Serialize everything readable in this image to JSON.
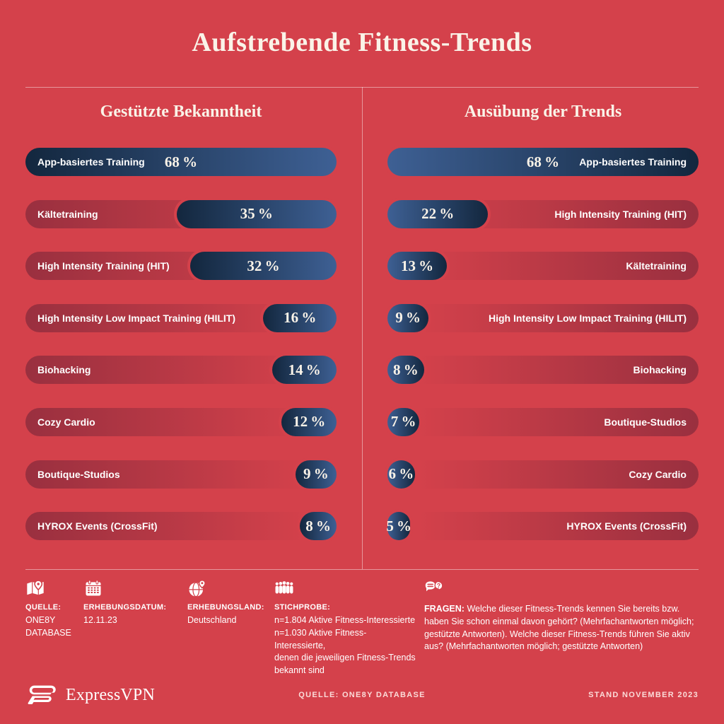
{
  "title": "Aufstrebende Fitness-Trends",
  "chart_data": [
    {
      "type": "bar",
      "title": "Gestützte Bekanntheit",
      "orientation": "horizontal, fills anchored right, labels left",
      "unit": "%",
      "max": 68,
      "categories": [
        "App-basiertes Training",
        "Kältetraining",
        "High Intensity Training (HIT)",
        "High Intensity Low Impact Training (HILIT)",
        "Biohacking",
        "Cozy Cardio",
        "Boutique-Studios",
        "HYROX Events (CrossFit)"
      ],
      "values": [
        68,
        35,
        32,
        16,
        14,
        12,
        9,
        8
      ],
      "labels": [
        "68 %",
        "35 %",
        "32 %",
        "16 %",
        "14 %",
        "12 %",
        "9 %",
        "8 %"
      ]
    },
    {
      "type": "bar",
      "title": "Ausübung der Trends",
      "orientation": "horizontal, fills anchored left, labels right",
      "unit": "%",
      "max": 68,
      "categories": [
        "App-basiertes Training",
        "High Intensity Training (HIT)",
        "Kältetraining",
        "High Intensity Low Impact Training (HILIT)",
        "Biohacking",
        "Boutique-Studios",
        "Cozy Cardio",
        "HYROX Events (CrossFit)"
      ],
      "values": [
        68,
        22,
        13,
        9,
        8,
        7,
        6,
        5
      ],
      "labels": [
        "68 %",
        "22 %",
        "13 %",
        "9 %",
        "8 %",
        "7 %",
        "6 %",
        "5 %"
      ]
    }
  ],
  "footer": {
    "items": [
      {
        "icon": "map-pin-icon",
        "label": "QUELLE:",
        "inline": false,
        "lines": [
          "ONE8Y",
          "DATABASE"
        ]
      },
      {
        "icon": "calendar-icon",
        "label": "ERHEBUNGSDATUM:",
        "inline": false,
        "lines": [
          "12.11.23"
        ]
      },
      {
        "icon": "globe-pin-icon",
        "label": "ERHEBUNGSLAND:",
        "inline": false,
        "lines": [
          "Deutschland"
        ]
      },
      {
        "icon": "people-icon",
        "label": "STICHPROBE:",
        "inline": false,
        "lines": [
          "n=1.804 Aktive Fitness-Interessierte",
          "n=1.030 Aktive Fitness-Interessierte,",
          "denen die jeweiligen Fitness-Trends",
          "bekannt sind"
        ]
      },
      {
        "icon": "chat-question-icon",
        "label": "FRAGEN:",
        "inline": true,
        "lines": [
          "Welche dieser Fitness-Trends kennen Sie bereits bzw. haben Sie schon einmal davon gehört? (Mehrfachantworten möglich; gestützte Antworten). Welche dieser Fitness-Trends führen Sie aktiv aus? (Mehrfachantworten möglich; gestützte Antworten)"
        ]
      }
    ]
  },
  "bottombar": {
    "brand": "ExpressVPN",
    "source": "QUELLE: ONE8Y DATABASE",
    "stand": "STAND NOVEMBER 2023"
  },
  "colors": {
    "background": "#D4414B",
    "bar_fill_dark": "#13273E",
    "bar_fill_light": "#3E6094",
    "track_shade": "#A23B47",
    "heading_text": "#FAF3E8",
    "body_text": "#FFFFFF",
    "hairline": "rgba(255,255,255,0.45)"
  }
}
